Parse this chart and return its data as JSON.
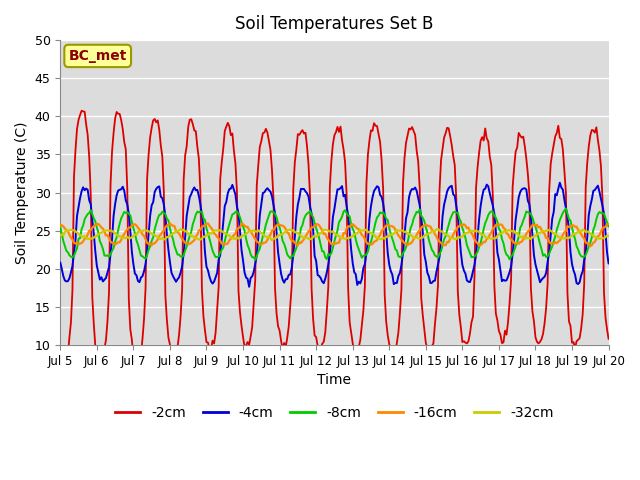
{
  "title": "Soil Temperatures Set B",
  "xlabel": "Time",
  "ylabel": "Soil Temperature (C)",
  "ylim": [
    10,
    50
  ],
  "annotation": "BC_met",
  "tick_labels": [
    "Jul 5",
    "Jul 6",
    "Jul 7",
    "Jul 8",
    "Jul 9",
    "Jul 10",
    "Jul 11",
    "Jul 12",
    "Jul 13",
    "Jul 14",
    "Jul 15",
    "Jul 16",
    "Jul 17",
    "Jul 18",
    "Jul 19",
    "Jul 20"
  ],
  "yticks": [
    10,
    15,
    20,
    25,
    30,
    35,
    40,
    45,
    50
  ],
  "bg_color": "#dcdcdc",
  "grid_color": "#c8c8c8",
  "colors": [
    "#dd0000",
    "#0000dd",
    "#00cc00",
    "#ff8800",
    "#cccc00"
  ],
  "legend_labels": [
    "-2cm",
    "-4cm",
    "-8cm",
    "-16cm",
    "-32cm"
  ]
}
